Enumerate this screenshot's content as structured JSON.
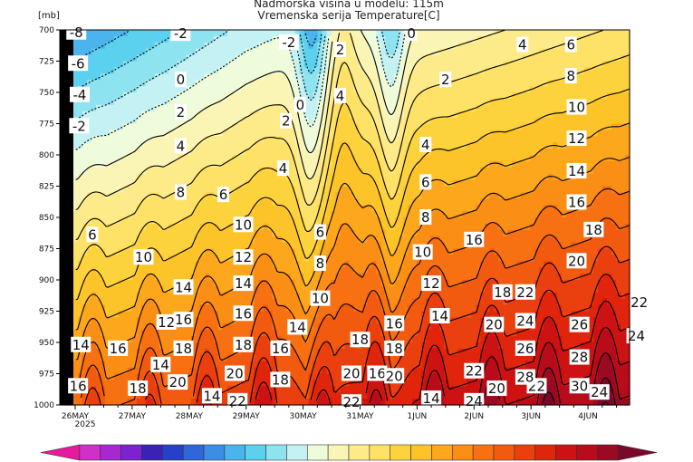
{
  "chart_data": {
    "type": "heatmap",
    "title_line1": "Nadmorska visina u modelu: 115m",
    "title_line2": "Vremenska serija Temperature[C]",
    "y_unit": "[mb]",
    "y_ticks": [
      "700",
      "725",
      "750",
      "775",
      "800",
      "825",
      "850",
      "875",
      "900",
      "925",
      "950",
      "975",
      "1000"
    ],
    "x_ticks": [
      "26MAY",
      "27MAY",
      "28MAY",
      "29MAY",
      "30MAY",
      "31MAY",
      "1JUN",
      "2JUN",
      "3JUN",
      "4JUN"
    ],
    "x_year": "2025",
    "y_range_mb": [
      700,
      1000
    ],
    "y_inverted": true,
    "contour_interval_c": 2,
    "palette": [
      "#e61a9c",
      "#d030c8",
      "#a628d0",
      "#7c22cf",
      "#3b22b5",
      "#2740c8",
      "#2f66d8",
      "#3c8de6",
      "#4bb4ec",
      "#5cd0ef",
      "#8ee3f0",
      "#c4f1f4",
      "#eefcdc",
      "#fbf5b5",
      "#fdeb8a",
      "#fee267",
      "#fdd33d",
      "#fdc42a",
      "#fca71c",
      "#fb8e14",
      "#f77012",
      "#f25a10",
      "#ea3f0e",
      "#e0250c",
      "#cc1212",
      "#b80c1a",
      "#9a0a22",
      "#7a0828"
    ],
    "contour_labels": [
      {
        "text": "-8",
        "day": 0.02,
        "mb": 702
      },
      {
        "text": "-6",
        "day": 0.05,
        "mb": 727
      },
      {
        "text": "-4",
        "day": 0.08,
        "mb": 752
      },
      {
        "text": "-2",
        "day": 0.07,
        "mb": 777
      },
      {
        "text": "-2",
        "day": 1.85,
        "mb": 703
      },
      {
        "text": "-2",
        "day": 3.75,
        "mb": 710
      },
      {
        "text": "0",
        "day": 1.85,
        "mb": 740
      },
      {
        "text": "0",
        "day": 3.95,
        "mb": 760
      },
      {
        "text": "0",
        "day": 5.9,
        "mb": 703
      },
      {
        "text": "2",
        "day": 1.85,
        "mb": 766
      },
      {
        "text": "2",
        "day": 3.7,
        "mb": 773
      },
      {
        "text": "2",
        "day": 4.65,
        "mb": 716
      },
      {
        "text": "2",
        "day": 6.5,
        "mb": 740
      },
      {
        "text": "4",
        "day": 1.85,
        "mb": 793
      },
      {
        "text": "4",
        "day": 3.65,
        "mb": 811
      },
      {
        "text": "4",
        "day": 4.65,
        "mb": 753
      },
      {
        "text": "4",
        "day": 6.15,
        "mb": 792
      },
      {
        "text": "4",
        "day": 7.85,
        "mb": 712
      },
      {
        "text": "6",
        "day": 0.3,
        "mb": 864
      },
      {
        "text": "6",
        "day": 2.6,
        "mb": 832
      },
      {
        "text": "6",
        "day": 4.3,
        "mb": 862
      },
      {
        "text": "6",
        "day": 6.15,
        "mb": 822
      },
      {
        "text": "6",
        "day": 8.7,
        "mb": 712
      },
      {
        "text": "8",
        "day": 1.85,
        "mb": 830
      },
      {
        "text": "8",
        "day": 4.3,
        "mb": 887
      },
      {
        "text": "8",
        "day": 6.15,
        "mb": 850
      },
      {
        "text": "8",
        "day": 8.7,
        "mb": 737
      },
      {
        "text": "10",
        "day": 1.2,
        "mb": 882
      },
      {
        "text": "10",
        "day": 2.95,
        "mb": 856
      },
      {
        "text": "10",
        "day": 4.3,
        "mb": 915
      },
      {
        "text": "10",
        "day": 6.1,
        "mb": 878
      },
      {
        "text": "10",
        "day": 8.8,
        "mb": 762
      },
      {
        "text": "12",
        "day": 2.95,
        "mb": 882
      },
      {
        "text": "12",
        "day": 1.6,
        "mb": 934
      },
      {
        "text": "12",
        "day": 6.25,
        "mb": 903
      },
      {
        "text": "12",
        "day": 8.8,
        "mb": 787
      },
      {
        "text": "14",
        "day": 1.9,
        "mb": 906
      },
      {
        "text": "14",
        "day": 2.95,
        "mb": 903
      },
      {
        "text": "14",
        "day": 3.9,
        "mb": 938
      },
      {
        "text": "14",
        "day": 6.4,
        "mb": 929
      },
      {
        "text": "14",
        "day": 8.8,
        "mb": 813
      },
      {
        "text": "14",
        "day": 0.1,
        "mb": 952
      },
      {
        "text": "14",
        "day": 1.5,
        "mb": 968
      },
      {
        "text": "14",
        "day": 2.4,
        "mb": 993
      },
      {
        "text": "14",
        "day": 6.25,
        "mb": 995
      },
      {
        "text": "16",
        "day": 1.9,
        "mb": 932
      },
      {
        "text": "16",
        "day": 2.95,
        "mb": 927
      },
      {
        "text": "16",
        "day": 3.6,
        "mb": 955
      },
      {
        "text": "16",
        "day": 5.6,
        "mb": 935
      },
      {
        "text": "16",
        "day": 0.75,
        "mb": 955
      },
      {
        "text": "16",
        "day": 7.0,
        "mb": 868
      },
      {
        "text": "16",
        "day": 8.8,
        "mb": 838
      },
      {
        "text": "16",
        "day": 5.3,
        "mb": 975
      },
      {
        "text": "16",
        "day": 0.05,
        "mb": 985
      },
      {
        "text": "18",
        "day": 1.9,
        "mb": 955
      },
      {
        "text": "18",
        "day": 2.95,
        "mb": 952
      },
      {
        "text": "18",
        "day": 3.6,
        "mb": 980
      },
      {
        "text": "18",
        "day": 5.0,
        "mb": 948
      },
      {
        "text": "18",
        "day": 5.6,
        "mb": 955
      },
      {
        "text": "18",
        "day": 7.5,
        "mb": 910
      },
      {
        "text": "18",
        "day": 9.1,
        "mb": 860
      },
      {
        "text": "18",
        "day": 1.1,
        "mb": 987
      },
      {
        "text": "20",
        "day": 1.8,
        "mb": 982
      },
      {
        "text": "20",
        "day": 2.8,
        "mb": 975
      },
      {
        "text": "20",
        "day": 4.85,
        "mb": 975
      },
      {
        "text": "20",
        "day": 5.6,
        "mb": 977
      },
      {
        "text": "20",
        "day": 7.35,
        "mb": 936
      },
      {
        "text": "20",
        "day": 7.4,
        "mb": 987
      },
      {
        "text": "20",
        "day": 8.8,
        "mb": 885
      },
      {
        "text": "22",
        "day": 7.9,
        "mb": 910
      },
      {
        "text": "22",
        "day": 7.0,
        "mb": 973
      },
      {
        "text": "22",
        "day": 8.1,
        "mb": 985
      },
      {
        "text": "22",
        "day": 9.9,
        "mb": 918
      },
      {
        "text": "22",
        "day": 2.85,
        "mb": 997
      },
      {
        "text": "22",
        "day": 4.85,
        "mb": 998
      },
      {
        "text": "24",
        "day": 7.9,
        "mb": 933
      },
      {
        "text": "24",
        "day": 9.85,
        "mb": 945
      },
      {
        "text": "24",
        "day": 7.0,
        "mb": 997
      },
      {
        "text": "24",
        "day": 9.2,
        "mb": 990
      },
      {
        "text": "26",
        "day": 7.9,
        "mb": 955
      },
      {
        "text": "26",
        "day": 8.85,
        "mb": 936
      },
      {
        "text": "28",
        "day": 7.9,
        "mb": 978
      },
      {
        "text": "28",
        "day": 8.85,
        "mb": 962
      },
      {
        "text": "30",
        "day": 8.85,
        "mb": 985
      }
    ],
    "grid": false,
    "colorbar_position": "bottom"
  }
}
